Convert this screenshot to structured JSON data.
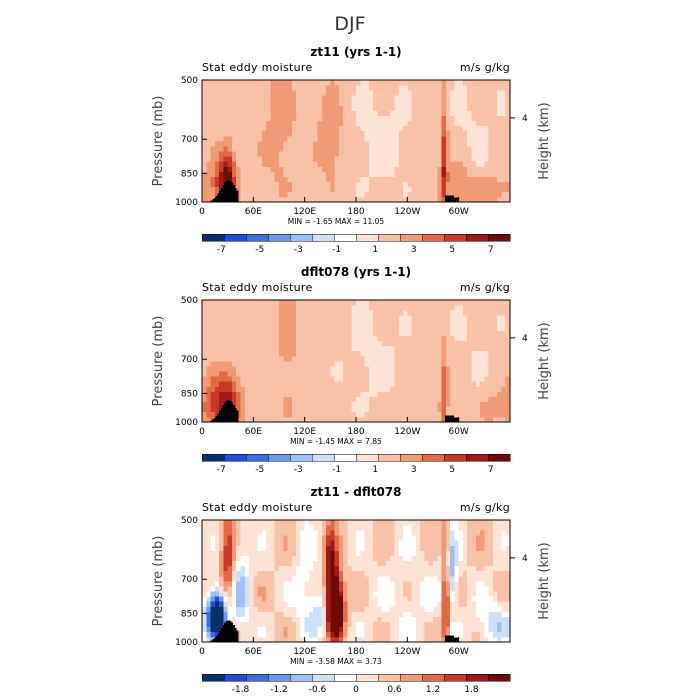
{
  "figure_title": "DJF",
  "colors": {
    "scale7": [
      "#08306b",
      "#1c4ed8",
      "#3b6fe0",
      "#6b97ec",
      "#9fbff6",
      "#cfe0fb",
      "#ffffff",
      "#fde3d6",
      "#f9c2a8",
      "#f19a76",
      "#e26a45",
      "#c9392a",
      "#9e1a16",
      "#6e0a0a"
    ],
    "cmap_min": [
      [
        "#08306b",
        0
      ],
      [
        "#1c4ed8",
        0.12
      ],
      [
        "#6b97ec",
        0.3
      ],
      [
        "#cfe0fb",
        0.45
      ],
      [
        "#f4f7fe",
        0.5
      ],
      [
        "#fde6da",
        0.56
      ],
      [
        "#f4a582",
        0.7
      ],
      [
        "#d6452c",
        0.85
      ],
      [
        "#7a0e0e",
        1.0
      ]
    ],
    "topo": "#000000",
    "frame": "#000000"
  },
  "chart_data": [
    {
      "type": "heatmap",
      "title": "zt11 (yrs 1-1)",
      "left_label": "Stat eddy moisture",
      "right_label": "m/s g/kg",
      "xlabel": "",
      "ylabel": "Pressure (mb)",
      "ylabel_right": "Height (km)",
      "xticks": [
        "0",
        "60E",
        "120E",
        "180",
        "120W",
        "60W"
      ],
      "xtick_lon": [
        0,
        60,
        120,
        180,
        240,
        300
      ],
      "xlim": [
        0,
        360
      ],
      "yticks": [
        "500",
        "700",
        "850",
        "1000"
      ],
      "ytick_p": [
        500,
        700,
        850,
        1000
      ],
      "ylim": [
        1000,
        500
      ],
      "right_tick": "4",
      "right_tick_km": 4,
      "min_text": "MIN =   -1.65   MAX =   11.05",
      "colorbar": {
        "labels": [
          "-7",
          "-5",
          "-3",
          "-1",
          "1",
          "3",
          "5",
          "7"
        ],
        "levels": [
          -8,
          -7,
          -6,
          -5,
          -4,
          -3,
          -2,
          -1,
          0,
          1,
          2,
          3,
          4,
          5,
          6,
          7,
          8
        ],
        "min": -8,
        "max": 8
      },
      "features": [
        {
          "lon": 30,
          "dlon": 6,
          "p": 870,
          "dp": 90,
          "a": 4.0
        },
        {
          "lon": 22,
          "dlon": 10,
          "p": 900,
          "dp": 80,
          "a": 2.5
        },
        {
          "lon": 150,
          "dlon": 10,
          "p": 700,
          "dp": 120,
          "a": 1.4
        },
        {
          "lon": 90,
          "dlon": 14,
          "p": 650,
          "dp": 200,
          "a": 0.9
        },
        {
          "lon": 210,
          "dlon": 25,
          "p": 700,
          "dp": 200,
          "a": -0.8
        },
        {
          "lon": 283,
          "dlon": 3,
          "p": 820,
          "dp": 180,
          "a": 3.5
        },
        {
          "lon": 300,
          "dlon": 10,
          "p": 900,
          "dp": 80,
          "a": 1.5
        },
        {
          "lon": 320,
          "dlon": 25,
          "p": 650,
          "dp": 200,
          "a": -0.6
        },
        {
          "lon": 340,
          "dlon": 20,
          "p": 930,
          "dp": 60,
          "a": 1.2
        }
      ],
      "base": 0.5
    },
    {
      "type": "heatmap",
      "title": "dflt078 (yrs 1-1)",
      "left_label": "Stat eddy moisture",
      "right_label": "m/s g/kg",
      "xlabel": "",
      "ylabel": "Pressure (mb)",
      "ylabel_right": "Height (km)",
      "xticks": [
        "0",
        "60E",
        "120E",
        "180",
        "120W",
        "60W"
      ],
      "xtick_lon": [
        0,
        60,
        120,
        180,
        240,
        300
      ],
      "xlim": [
        0,
        360
      ],
      "yticks": [
        "500",
        "700",
        "850",
        "1000"
      ],
      "ytick_p": [
        500,
        700,
        850,
        1000
      ],
      "ylim": [
        1000,
        500
      ],
      "right_tick": "4",
      "right_tick_km": 4,
      "min_text": "MIN =   -1.45   MAX =   7.85",
      "colorbar": {
        "labels": [
          "-7",
          "-5",
          "-3",
          "-1",
          "1",
          "3",
          "5",
          "7"
        ],
        "levels": [
          -8,
          -7,
          -6,
          -5,
          -4,
          -3,
          -2,
          -1,
          0,
          1,
          2,
          3,
          4,
          5,
          6,
          7,
          8
        ],
        "min": -8,
        "max": 8
      },
      "features": [
        {
          "lon": 20,
          "dlon": 12,
          "p": 900,
          "dp": 90,
          "a": 3.5
        },
        {
          "lon": 35,
          "dlon": 8,
          "p": 880,
          "dp": 100,
          "a": 2.0
        },
        {
          "lon": 100,
          "dlon": 10,
          "p": 650,
          "dp": 200,
          "a": 0.8
        },
        {
          "lon": 200,
          "dlon": 30,
          "p": 700,
          "dp": 200,
          "a": -0.7
        },
        {
          "lon": 283,
          "dlon": 3,
          "p": 850,
          "dp": 150,
          "a": 2.5
        },
        {
          "lon": 320,
          "dlon": 25,
          "p": 650,
          "dp": 200,
          "a": -0.5
        },
        {
          "lon": 345,
          "dlon": 15,
          "p": 920,
          "dp": 70,
          "a": 1.0
        }
      ],
      "base": 0.5
    },
    {
      "type": "heatmap",
      "title": "zt11 - dflt078",
      "left_label": "Stat eddy moisture",
      "right_label": "m/s g/kg",
      "xlabel": "",
      "ylabel": "Pressure (mb)",
      "ylabel_right": "Height (km)",
      "xticks": [
        "0",
        "60E",
        "120E",
        "180",
        "120W",
        "60W"
      ],
      "xtick_lon": [
        0,
        60,
        120,
        180,
        240,
        300
      ],
      "xlim": [
        0,
        360
      ],
      "yticks": [
        "500",
        "700",
        "850",
        "1000"
      ],
      "ytick_p": [
        500,
        700,
        850,
        1000
      ],
      "ylim": [
        1000,
        500
      ],
      "right_tick": "4",
      "right_tick_km": 4,
      "min_text": "MIN =   -3.58   MAX =   3.73",
      "colorbar": {
        "labels": [
          "-1.8",
          "-1.2",
          "-0.6",
          "0",
          "0.6",
          "1.2",
          "1.8"
        ],
        "levels": [
          -2.4,
          -2.1,
          -1.8,
          -1.5,
          -1.2,
          -0.9,
          -0.6,
          -0.3,
          0,
          0.3,
          0.6,
          0.9,
          1.2,
          1.5,
          1.8,
          2.1,
          2.4
        ],
        "min": -2.4,
        "max": 2.4
      },
      "features": [
        {
          "lon": 18,
          "dlon": 8,
          "p": 860,
          "dp": 80,
          "a": -3.5
        },
        {
          "lon": 30,
          "dlon": 6,
          "p": 650,
          "dp": 150,
          "a": 1.2
        },
        {
          "lon": 45,
          "dlon": 8,
          "p": 750,
          "dp": 150,
          "a": -0.9
        },
        {
          "lon": 155,
          "dlon": 7,
          "p": 820,
          "dp": 100,
          "a": 3.6
        },
        {
          "lon": 150,
          "dlon": 5,
          "p": 620,
          "dp": 80,
          "a": 1.2
        },
        {
          "lon": 140,
          "dlon": 10,
          "p": 850,
          "dp": 80,
          "a": -0.8
        },
        {
          "lon": 120,
          "dlon": 10,
          "p": 750,
          "dp": 150,
          "a": -0.5
        },
        {
          "lon": 285,
          "dlon": 3,
          "p": 750,
          "dp": 200,
          "a": 1.8
        },
        {
          "lon": 290,
          "dlon": 6,
          "p": 680,
          "dp": 100,
          "a": -1.2
        },
        {
          "lon": 340,
          "dlon": 15,
          "p": 900,
          "dp": 80,
          "a": -0.8
        },
        {
          "lon": 240,
          "dlon": 30,
          "p": 800,
          "dp": 150,
          "a": -0.3
        }
      ],
      "base": 0.0
    }
  ]
}
